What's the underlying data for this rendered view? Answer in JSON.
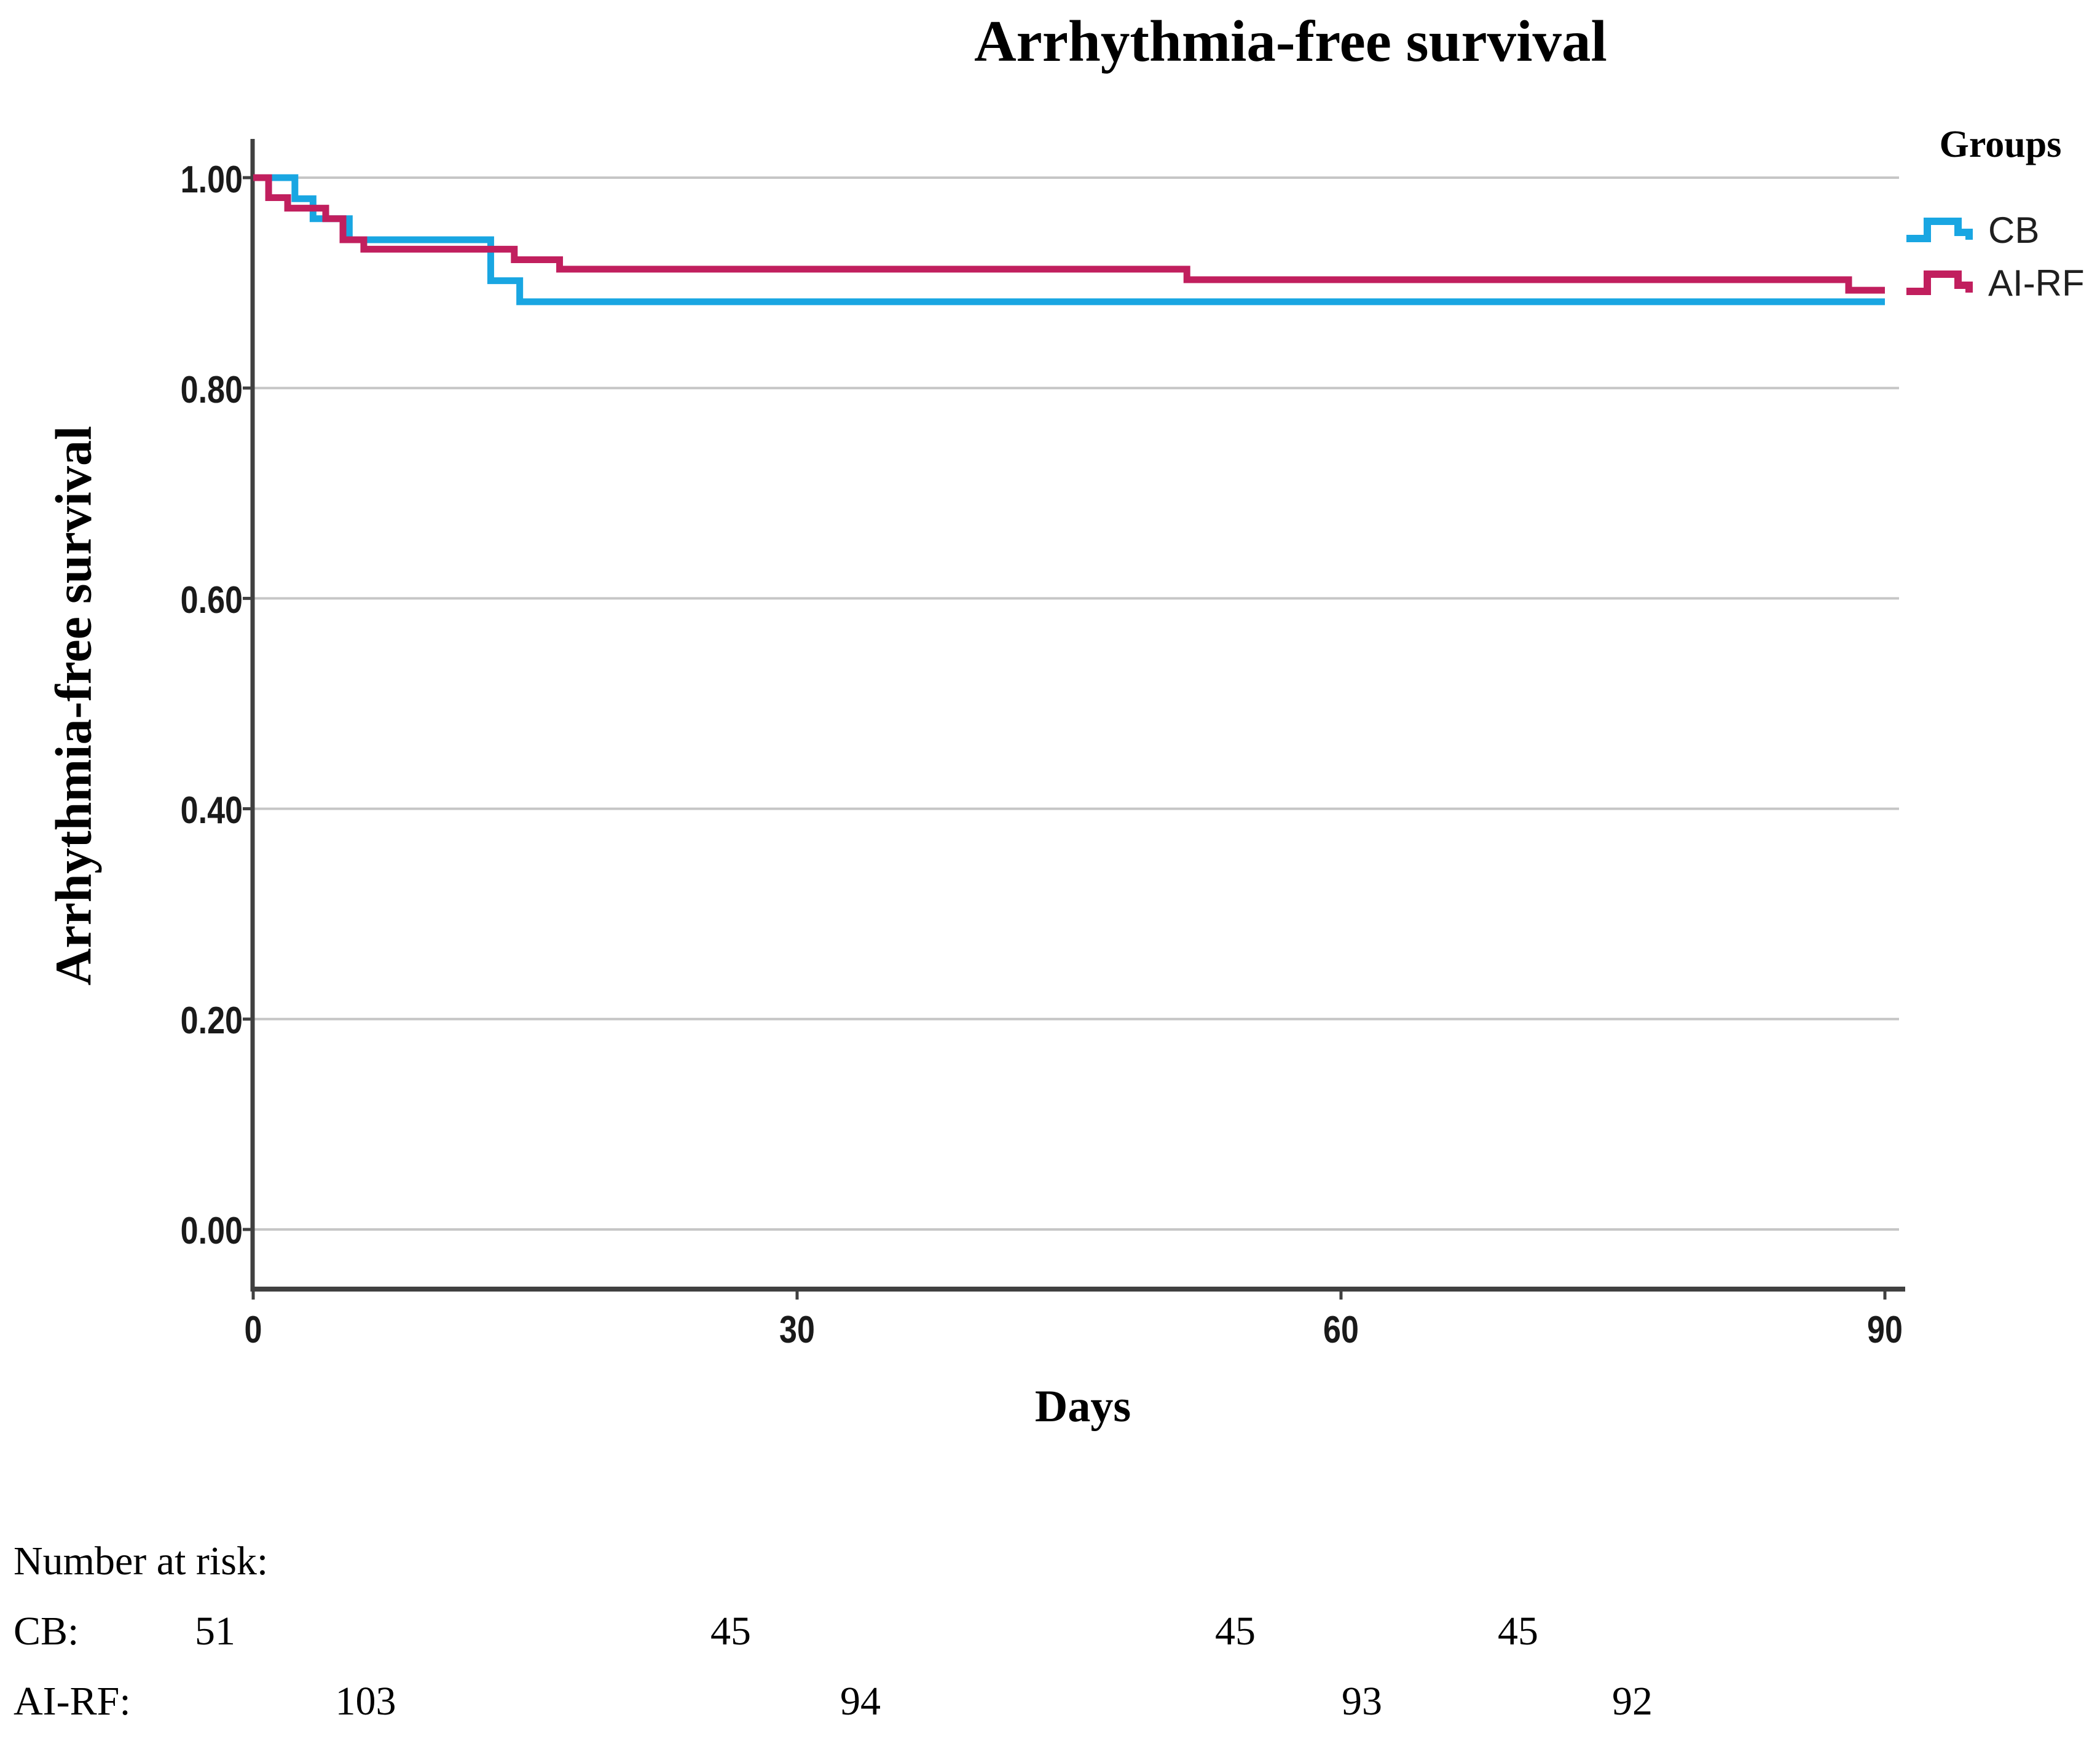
{
  "title": "Arrhythmia-free survival",
  "chart_data": {
    "type": "line",
    "subtype": "kaplan-meier-step",
    "title": "Arrhythmia-free survival",
    "xlabel": "Days",
    "ylabel": "Arrhythmia-free survival",
    "xlim": [
      0,
      90
    ],
    "ylim": [
      0.0,
      1.0
    ],
    "xticks": [
      "0",
      "30",
      "60",
      "90"
    ],
    "yticks": [
      "0.00",
      "0.20",
      "0.40",
      "0.60",
      "0.80",
      "1.00"
    ],
    "grid": "horizontal",
    "legend_position": "top-right",
    "legend_title": "Groups",
    "series": [
      {
        "name": "CB",
        "color": "#19A6E2",
        "steps": [
          [
            0,
            1.0
          ],
          [
            2.3,
            0.98
          ],
          [
            3.3,
            0.961
          ],
          [
            5.3,
            0.941
          ],
          [
            13.1,
            0.902
          ],
          [
            14.7,
            0.882
          ],
          [
            90,
            0.882
          ]
        ]
      },
      {
        "name": "AI-RF",
        "color": "#C11F5E",
        "steps": [
          [
            0,
            1.0
          ],
          [
            0.85,
            0.981
          ],
          [
            1.9,
            0.971
          ],
          [
            4.0,
            0.961
          ],
          [
            4.95,
            0.941
          ],
          [
            6.1,
            0.932
          ],
          [
            14.4,
            0.922
          ],
          [
            16.9,
            0.913
          ],
          [
            51.5,
            0.903
          ],
          [
            88,
            0.893
          ],
          [
            90,
            0.893
          ]
        ]
      }
    ]
  },
  "colors": {
    "cb": "#19A6E2",
    "airf": "#C11F5E",
    "gridline": "#c6c6c6",
    "axis": "#404040"
  },
  "risk_table": {
    "heading": "Number at risk:",
    "rows": [
      {
        "label": "CB:",
        "values": [
          "51",
          "45",
          "45",
          "45"
        ]
      },
      {
        "label": "AI-RF:",
        "values": [
          "103",
          "94",
          "93",
          "92"
        ]
      }
    ]
  }
}
